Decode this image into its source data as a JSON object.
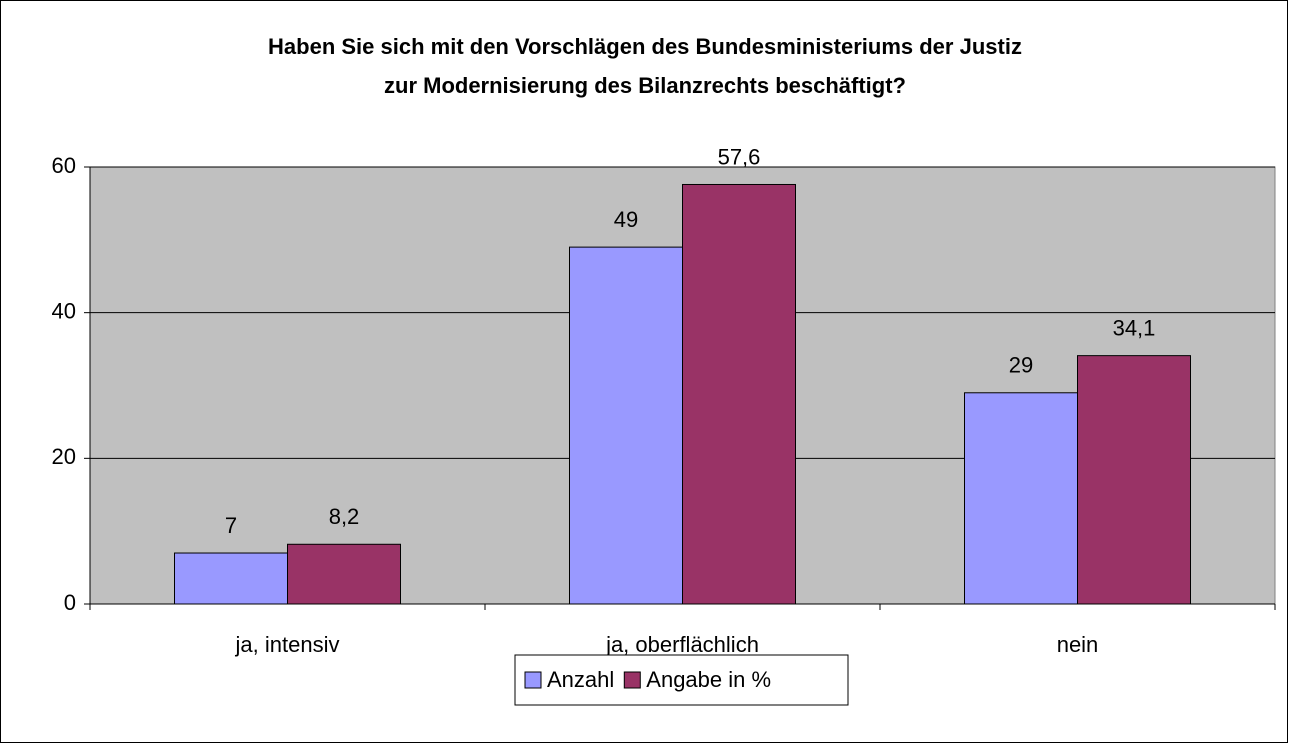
{
  "chart_data": {
    "type": "bar",
    "title": [
      "Haben Sie sich mit den Vorschlägen des Bundesministeriums der Justiz",
      "zur Modernisierung des Bilanzrechts beschäftigt?"
    ],
    "categories": [
      "ja, intensiv",
      "ja, oberflächlich",
      "nein"
    ],
    "series": [
      {
        "name": "Anzahl",
        "color": "#9999ff",
        "values": [
          7,
          49,
          29
        ]
      },
      {
        "name": "Angabe in %",
        "color": "#993366",
        "values": [
          8.2,
          57.6,
          34.1
        ],
        "value_labels": [
          "8,2",
          "57,6",
          "34,1"
        ]
      }
    ],
    "ylim": [
      0,
      60
    ],
    "yticks": [
      0,
      20,
      40,
      60
    ],
    "grid": true,
    "legend": "bottom"
  }
}
